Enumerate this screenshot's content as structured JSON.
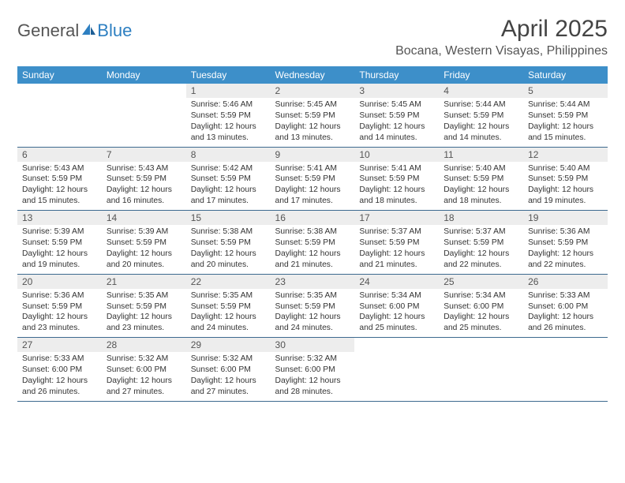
{
  "brand": {
    "part1": "General",
    "part2": "Blue"
  },
  "title": "April 2025",
  "location": "Bocana, Western Visayas, Philippines",
  "colors": {
    "header_bg": "#3d8fc9",
    "header_text": "#ffffff",
    "daynum_bg": "#ededed",
    "border": "#3d6a8f",
    "text": "#333333",
    "title_text": "#444444",
    "brand_gray": "#555555",
    "brand_blue": "#2d7fc1",
    "background": "#ffffff"
  },
  "typography": {
    "title_fontsize": 30,
    "location_fontsize": 16,
    "dayheader_fontsize": 12,
    "daynum_fontsize": 12,
    "body_fontsize": 10.3
  },
  "day_headers": [
    "Sunday",
    "Monday",
    "Tuesday",
    "Wednesday",
    "Thursday",
    "Friday",
    "Saturday"
  ],
  "weeks": [
    [
      {
        "n": "",
        "body": ""
      },
      {
        "n": "",
        "body": ""
      },
      {
        "n": "1",
        "body": "Sunrise: 5:46 AM\nSunset: 5:59 PM\nDaylight: 12 hours and 13 minutes."
      },
      {
        "n": "2",
        "body": "Sunrise: 5:45 AM\nSunset: 5:59 PM\nDaylight: 12 hours and 13 minutes."
      },
      {
        "n": "3",
        "body": "Sunrise: 5:45 AM\nSunset: 5:59 PM\nDaylight: 12 hours and 14 minutes."
      },
      {
        "n": "4",
        "body": "Sunrise: 5:44 AM\nSunset: 5:59 PM\nDaylight: 12 hours and 14 minutes."
      },
      {
        "n": "5",
        "body": "Sunrise: 5:44 AM\nSunset: 5:59 PM\nDaylight: 12 hours and 15 minutes."
      }
    ],
    [
      {
        "n": "6",
        "body": "Sunrise: 5:43 AM\nSunset: 5:59 PM\nDaylight: 12 hours and 15 minutes."
      },
      {
        "n": "7",
        "body": "Sunrise: 5:43 AM\nSunset: 5:59 PM\nDaylight: 12 hours and 16 minutes."
      },
      {
        "n": "8",
        "body": "Sunrise: 5:42 AM\nSunset: 5:59 PM\nDaylight: 12 hours and 17 minutes."
      },
      {
        "n": "9",
        "body": "Sunrise: 5:41 AM\nSunset: 5:59 PM\nDaylight: 12 hours and 17 minutes."
      },
      {
        "n": "10",
        "body": "Sunrise: 5:41 AM\nSunset: 5:59 PM\nDaylight: 12 hours and 18 minutes."
      },
      {
        "n": "11",
        "body": "Sunrise: 5:40 AM\nSunset: 5:59 PM\nDaylight: 12 hours and 18 minutes."
      },
      {
        "n": "12",
        "body": "Sunrise: 5:40 AM\nSunset: 5:59 PM\nDaylight: 12 hours and 19 minutes."
      }
    ],
    [
      {
        "n": "13",
        "body": "Sunrise: 5:39 AM\nSunset: 5:59 PM\nDaylight: 12 hours and 19 minutes."
      },
      {
        "n": "14",
        "body": "Sunrise: 5:39 AM\nSunset: 5:59 PM\nDaylight: 12 hours and 20 minutes."
      },
      {
        "n": "15",
        "body": "Sunrise: 5:38 AM\nSunset: 5:59 PM\nDaylight: 12 hours and 20 minutes."
      },
      {
        "n": "16",
        "body": "Sunrise: 5:38 AM\nSunset: 5:59 PM\nDaylight: 12 hours and 21 minutes."
      },
      {
        "n": "17",
        "body": "Sunrise: 5:37 AM\nSunset: 5:59 PM\nDaylight: 12 hours and 21 minutes."
      },
      {
        "n": "18",
        "body": "Sunrise: 5:37 AM\nSunset: 5:59 PM\nDaylight: 12 hours and 22 minutes."
      },
      {
        "n": "19",
        "body": "Sunrise: 5:36 AM\nSunset: 5:59 PM\nDaylight: 12 hours and 22 minutes."
      }
    ],
    [
      {
        "n": "20",
        "body": "Sunrise: 5:36 AM\nSunset: 5:59 PM\nDaylight: 12 hours and 23 minutes."
      },
      {
        "n": "21",
        "body": "Sunrise: 5:35 AM\nSunset: 5:59 PM\nDaylight: 12 hours and 23 minutes."
      },
      {
        "n": "22",
        "body": "Sunrise: 5:35 AM\nSunset: 5:59 PM\nDaylight: 12 hours and 24 minutes."
      },
      {
        "n": "23",
        "body": "Sunrise: 5:35 AM\nSunset: 5:59 PM\nDaylight: 12 hours and 24 minutes."
      },
      {
        "n": "24",
        "body": "Sunrise: 5:34 AM\nSunset: 6:00 PM\nDaylight: 12 hours and 25 minutes."
      },
      {
        "n": "25",
        "body": "Sunrise: 5:34 AM\nSunset: 6:00 PM\nDaylight: 12 hours and 25 minutes."
      },
      {
        "n": "26",
        "body": "Sunrise: 5:33 AM\nSunset: 6:00 PM\nDaylight: 12 hours and 26 minutes."
      }
    ],
    [
      {
        "n": "27",
        "body": "Sunrise: 5:33 AM\nSunset: 6:00 PM\nDaylight: 12 hours and 26 minutes."
      },
      {
        "n": "28",
        "body": "Sunrise: 5:32 AM\nSunset: 6:00 PM\nDaylight: 12 hours and 27 minutes."
      },
      {
        "n": "29",
        "body": "Sunrise: 5:32 AM\nSunset: 6:00 PM\nDaylight: 12 hours and 27 minutes."
      },
      {
        "n": "30",
        "body": "Sunrise: 5:32 AM\nSunset: 6:00 PM\nDaylight: 12 hours and 28 minutes."
      },
      {
        "n": "",
        "body": ""
      },
      {
        "n": "",
        "body": ""
      },
      {
        "n": "",
        "body": ""
      }
    ]
  ]
}
